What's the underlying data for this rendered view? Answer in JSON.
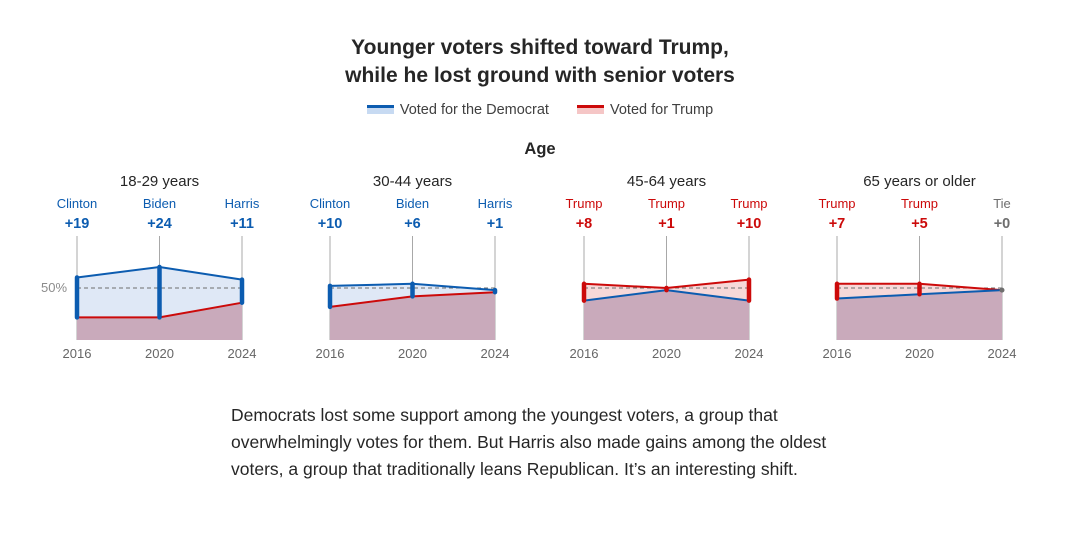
{
  "title_line1": "Younger voters shifted toward Trump,",
  "title_line2": "while he lost ground with senior voters",
  "legend": [
    {
      "label": "Voted for the Democrat",
      "color": "#0c5cb0",
      "fill": "#c7daf2"
    },
    {
      "label": "Voted for Trump",
      "color": "#cc0a0a",
      "fill": "#f5c6c6"
    }
  ],
  "group_label": "Age",
  "y_reference_label": "50%",
  "colors": {
    "dem": "#0c5cb0",
    "rep": "#cc0a0a",
    "tie": "#6e6e6e",
    "overlap": "#c9aabb",
    "dem_fill": "#dbe6f5",
    "rep_fill": "#f5d4d4",
    "axis": "#a8a8a8"
  },
  "chart_data": [
    {
      "type": "area",
      "title": "18-29 years",
      "x": [
        "2016",
        "2020",
        "2024"
      ],
      "winners": [
        "Clinton",
        "Biden",
        "Harris"
      ],
      "margins": [
        "+19",
        "+24",
        "+11"
      ],
      "series": [
        {
          "name": "Voted for the Democrat",
          "values": [
            55,
            60,
            54
          ]
        },
        {
          "name": "Voted for Trump",
          "values": [
            36,
            36,
            43
          ]
        }
      ]
    },
    {
      "type": "area",
      "title": "30-44 years",
      "x": [
        "2016",
        "2020",
        "2024"
      ],
      "winners": [
        "Clinton",
        "Biden",
        "Harris"
      ],
      "margins": [
        "+10",
        "+6",
        "+1"
      ],
      "series": [
        {
          "name": "Voted for the Democrat",
          "values": [
            51,
            52,
            49
          ]
        },
        {
          "name": "Voted for Trump",
          "values": [
            41,
            46,
            48
          ]
        }
      ]
    },
    {
      "type": "area",
      "title": "45-64 years",
      "x": [
        "2016",
        "2020",
        "2024"
      ],
      "winners": [
        "Trump",
        "Trump",
        "Trump"
      ],
      "margins": [
        "+8",
        "+1",
        "+10"
      ],
      "series": [
        {
          "name": "Voted for the Democrat",
          "values": [
            44,
            49,
            44
          ]
        },
        {
          "name": "Voted for Trump",
          "values": [
            52,
            50,
            54
          ]
        }
      ]
    },
    {
      "type": "area",
      "title": "65 years or older",
      "x": [
        "2016",
        "2020",
        "2024"
      ],
      "winners": [
        "Trump",
        "Trump",
        "Tie"
      ],
      "margins": [
        "+7",
        "+5",
        "+0"
      ],
      "series": [
        {
          "name": "Voted for the Democrat",
          "values": [
            45,
            47,
            49
          ]
        },
        {
          "name": "Voted for Trump",
          "values": [
            52,
            52,
            49
          ]
        }
      ]
    }
  ],
  "caption": "Democrats lost some support among the youngest voters, a group that overwhelmingly votes for them. But Harris also made gains among the oldest voters, a group that traditionally leans Republican. It’s an interesting shift."
}
